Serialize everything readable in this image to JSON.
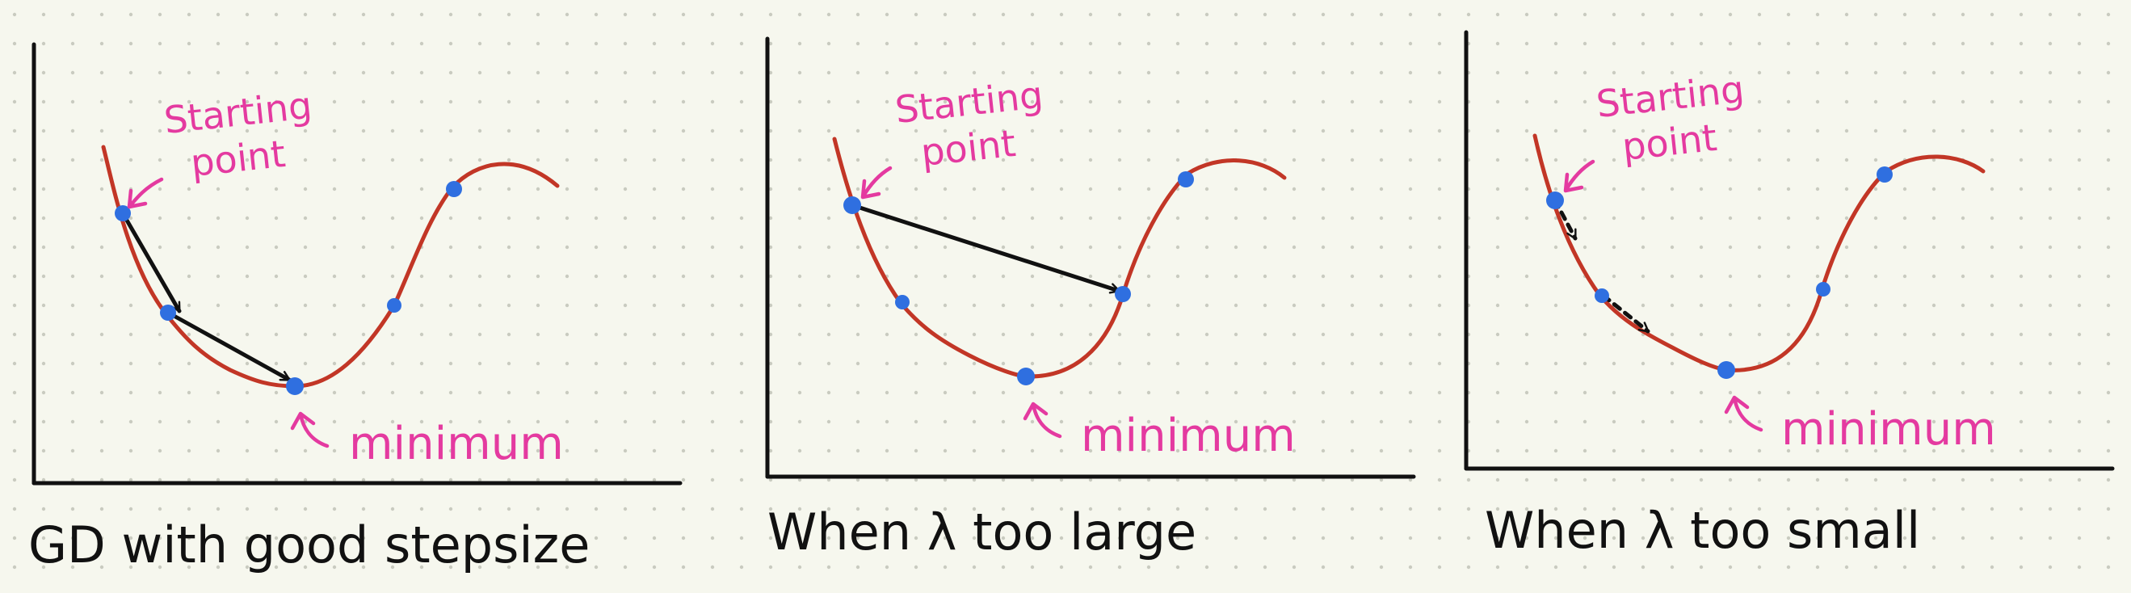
{
  "colors": {
    "background": "#f6f7ee",
    "grid_dot": "#c9cbc0",
    "axis": "#111111",
    "curve": "#c23626",
    "point": "#2f6fe0",
    "step_arrow": "#111111",
    "annotation": "#e43aa0"
  },
  "panels": [
    {
      "id": "good",
      "caption": "GD with good stepsize",
      "start_label_line1": "Starting",
      "start_label_line2": "point",
      "minimum_label": "minimum",
      "step_style": "solid"
    },
    {
      "id": "large",
      "caption": "When λ too large",
      "start_label_line1": "Starting",
      "start_label_line2": "point",
      "minimum_label": "minimum",
      "step_style": "solid"
    },
    {
      "id": "small",
      "caption": "When λ too small",
      "start_label_line1": "Starting",
      "start_label_line2": "point",
      "minimum_label": "minimum",
      "step_style": "dashed"
    }
  ]
}
